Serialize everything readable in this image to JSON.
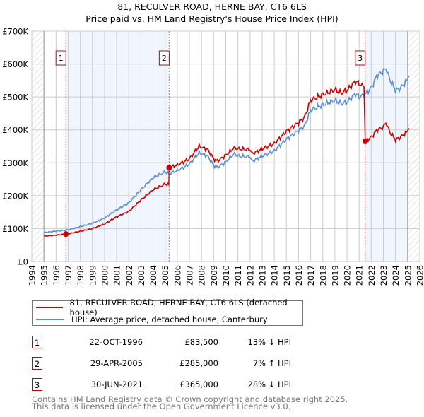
{
  "chart_data": {
    "type": "line",
    "title": "81, RECULVER ROAD, HERNE BAY, CT6 6LS",
    "subtitle": "Price paid vs. HM Land Registry's House Price Index (HPI)",
    "xlim": [
      1994,
      2026
    ],
    "ylim": [
      0,
      700000
    ],
    "x_ticks": [
      "1994",
      "1995",
      "1996",
      "1997",
      "1998",
      "1999",
      "2000",
      "2001",
      "2002",
      "2003",
      "2004",
      "2005",
      "2006",
      "2007",
      "2008",
      "2009",
      "2010",
      "2011",
      "2012",
      "2013",
      "2014",
      "2015",
      "2016",
      "2017",
      "2018",
      "2019",
      "2020",
      "2021",
      "2022",
      "2023",
      "2024",
      "2025",
      "2026"
    ],
    "y_ticks": [
      {
        "v": 0,
        "label": "£0"
      },
      {
        "v": 100000,
        "label": "£100K"
      },
      {
        "v": 200000,
        "label": "£200K"
      },
      {
        "v": 300000,
        "label": "£300K"
      },
      {
        "v": 400000,
        "label": "£400K"
      },
      {
        "v": 500000,
        "label": "£500K"
      },
      {
        "v": 600000,
        "label": "£600K"
      },
      {
        "v": 700000,
        "label": "£700K"
      }
    ],
    "grid": true,
    "series": [
      {
        "name": "81, RECULVER ROAD, HERNE BAY, CT6 6LS (detached house)",
        "color": "#cc0000",
        "x": [
          1995,
          1996,
          1996.81,
          1997,
          1998,
          1999,
          2000,
          2001,
          2002,
          2003,
          2004,
          2005,
          2005.3,
          2005.33,
          2006,
          2007,
          2007.8,
          2008.5,
          2009,
          2009.3,
          2010,
          2010.7,
          2011,
          2012,
          2012.2,
          2013,
          2014,
          2015,
          2016,
          2016.5,
          2017,
          2018,
          2019,
          2019.5,
          2020,
          2020.7,
          2021,
          2021.4,
          2021.5,
          2022,
          2022.5,
          2023,
          2023.2,
          2023.5,
          2024,
          2024.4,
          2024.9,
          2025.1
        ],
        "y": [
          77000,
          80000,
          83500,
          84000,
          92000,
          100000,
          114000,
          136000,
          152000,
          187000,
          218000,
          235000,
          233000,
          285000,
          293000,
          312000,
          350000,
          340000,
          312000,
          305000,
          323000,
          346000,
          342000,
          340000,
          328000,
          342000,
          358000,
          396000,
          422000,
          438000,
          490000,
          507000,
          522000,
          512000,
          520000,
          548000,
          540000,
          530000,
          365000,
          378000,
          400000,
          408000,
          424000,
          395000,
          370000,
          378000,
          392000,
          405000
        ]
      },
      {
        "name": "HPI: Average price, detached house, Canterbury",
        "color": "#5b8fd6",
        "x": [
          1995,
          1996,
          1997,
          1998,
          1999,
          2000,
          2001,
          2002,
          2003,
          2004,
          2005,
          2005.3,
          2006,
          2007,
          2007.8,
          2008.5,
          2009,
          2009.3,
          2010,
          2010.7,
          2011,
          2012,
          2012.2,
          2013,
          2014,
          2015,
          2016,
          2016.5,
          2017,
          2018,
          2019,
          2019.5,
          2020,
          2020.7,
          2021,
          2021.5,
          2022,
          2022.5,
          2023,
          2023.2,
          2023.5,
          2024,
          2024.4,
          2024.9,
          2025.1
        ],
        "y": [
          88000,
          92000,
          96000,
          106000,
          116000,
          132000,
          157000,
          178000,
          218000,
          255000,
          272000,
          267000,
          276000,
          296000,
          330000,
          320000,
          292000,
          286000,
          302000,
          328000,
          320000,
          318000,
          305000,
          320000,
          336000,
          372000,
          398000,
          412000,
          460000,
          476000,
          490000,
          480000,
          484000,
          510000,
          500000,
          508000,
          528000,
          566000,
          578000,
          590000,
          555000,
          520000,
          527000,
          548000,
          565000
        ]
      }
    ],
    "sales": [
      {
        "n": "1",
        "date": "22-OCT-1996",
        "x": 1996.81,
        "price": "£83,500",
        "value": 83500,
        "hpi": "13% ↓ HPI"
      },
      {
        "n": "2",
        "date": "29-APR-2005",
        "x": 2005.33,
        "price": "£285,000",
        "value": 285000,
        "hpi": "7% ↑ HPI"
      },
      {
        "n": "3",
        "date": "30-JUN-2021",
        "x": 2021.5,
        "price": "£365,000",
        "value": 365000,
        "hpi": "28% ↓ HPI"
      }
    ],
    "footer": [
      "Contains HM Land Registry data © Crown copyright and database right 2025.",
      "This data is licensed under the Open Government Licence v3.0."
    ]
  }
}
